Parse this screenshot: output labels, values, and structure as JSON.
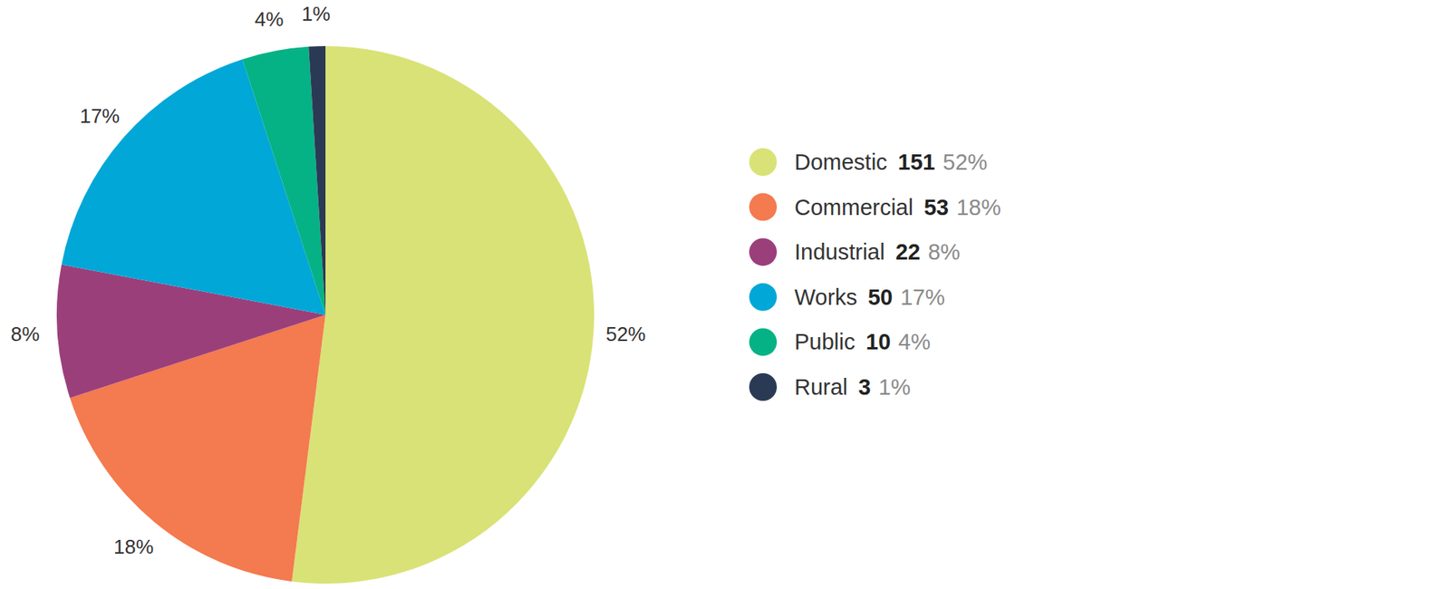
{
  "chart_data": {
    "type": "pie",
    "categories": [
      "Domestic",
      "Commercial",
      "Industrial",
      "Works",
      "Public",
      "Rural"
    ],
    "values": [
      52,
      18,
      8,
      17,
      4,
      1
    ],
    "value_labels": [
      "52%",
      "18%",
      "8%",
      "17%",
      "4%",
      "1%"
    ],
    "counts": [
      151,
      53,
      22,
      50,
      10,
      3
    ],
    "colors": [
      "#d9e276",
      "#f47a4f",
      "#9b3f7b",
      "#00a7d7",
      "#05b285",
      "#2a3a55"
    ],
    "data_labels": true,
    "legend": "right"
  }
}
